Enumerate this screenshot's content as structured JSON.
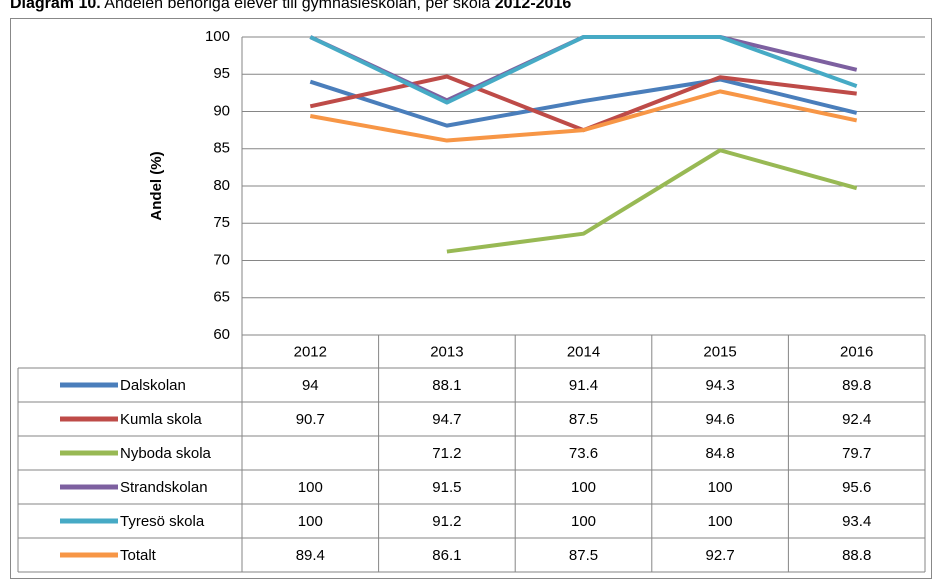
{
  "chart_data": {
    "type": "line",
    "title": [
      "Diagram 10.",
      "Andelen behöriga elever till gymnasieskolan, per skola",
      "2012-2016"
    ],
    "ylabel": "Andel (%)",
    "categories": [
      "2012",
      "2013",
      "2014",
      "2015",
      "2016"
    ],
    "ylim": [
      60,
      100
    ],
    "yticks": [
      60,
      65,
      70,
      75,
      80,
      85,
      90,
      95,
      100
    ],
    "grid": true,
    "series": [
      {
        "name": "Dalskolan",
        "color": "#4a7ebb",
        "values": [
          94,
          88.1,
          91.4,
          94.3,
          89.8
        ]
      },
      {
        "name": "Kumla skola",
        "color": "#be4b48",
        "values": [
          90.7,
          94.7,
          87.5,
          94.6,
          92.4
        ]
      },
      {
        "name": "Nyboda skola",
        "color": "#98b954",
        "values": [
          null,
          71.2,
          73.6,
          84.8,
          79.7
        ]
      },
      {
        "name": "Strandskolan",
        "color": "#7d60a0",
        "values": [
          100,
          91.5,
          100,
          100,
          95.6
        ]
      },
      {
        "name": "Tyresö skola",
        "color": "#46aac5",
        "values": [
          100,
          91.2,
          100,
          100,
          93.4
        ]
      },
      {
        "name": "Totalt",
        "color": "#f79646",
        "values": [
          89.4,
          86.1,
          87.5,
          92.7,
          88.8
        ]
      }
    ]
  }
}
